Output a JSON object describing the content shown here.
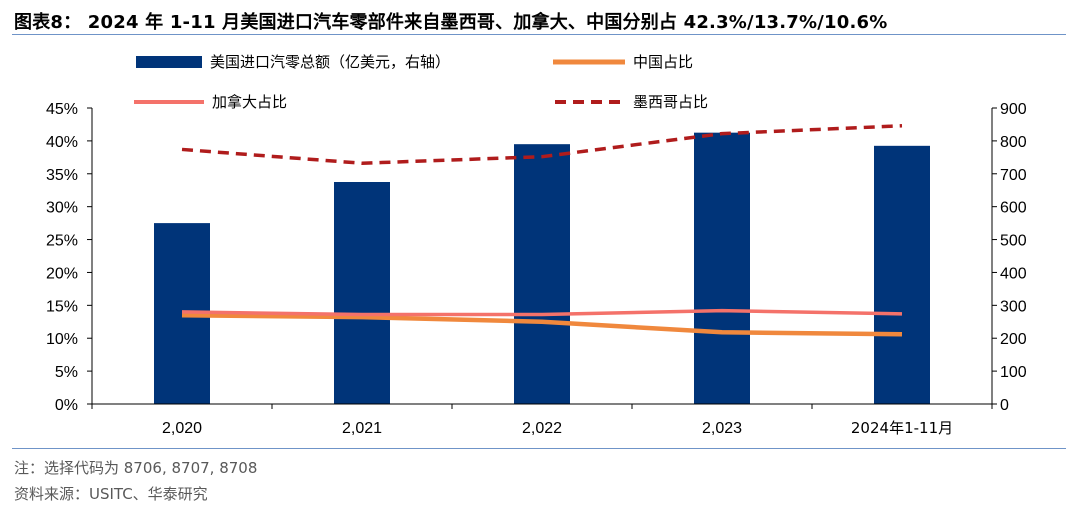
{
  "title": "图表8： 2024 年 1-11 月美国进口汽车零部件来自墨西哥、加拿大、中国分别占 42.3%/13.7%/10.6%",
  "footnotes": {
    "note": "注：选择代码为 8706, 8707, 8708",
    "source": "资料来源：USITC、华泰研究"
  },
  "colors": {
    "bar": "#003479",
    "china": "#f0883d",
    "canada": "#f4726a",
    "mexico": "#b01c1c",
    "axis": "#000000",
    "rule": "#6f94c8"
  },
  "chart_data": {
    "type": "bar",
    "categories": [
      "2,020",
      "2,021",
      "2,022",
      "2,023",
      "2024年1-11月"
    ],
    "y_left": {
      "ticks": [
        "0%",
        "5%",
        "10%",
        "15%",
        "20%",
        "25%",
        "30%",
        "35%",
        "40%",
        "45%"
      ],
      "ylim": [
        0,
        45
      ]
    },
    "y_right": {
      "ticks": [
        "0",
        "100",
        "200",
        "300",
        "400",
        "500",
        "600",
        "700",
        "800",
        "900"
      ],
      "ylim": [
        0,
        900
      ]
    },
    "grid": false,
    "legend_position": "top",
    "series": [
      {
        "name": "美国进口汽零总额（亿美元，右轴）",
        "type": "bar",
        "axis": "right",
        "values": [
          550,
          675,
          790,
          825,
          785
        ]
      },
      {
        "name": "中国占比",
        "type": "line",
        "axis": "left",
        "style": "solid",
        "values": [
          13.5,
          13.2,
          12.5,
          10.9,
          10.6
        ]
      },
      {
        "name": "加拿大占比",
        "type": "line",
        "axis": "left",
        "style": "solid",
        "values": [
          14.0,
          13.6,
          13.6,
          14.2,
          13.7
        ]
      },
      {
        "name": "墨西哥占比",
        "type": "line",
        "axis": "left",
        "style": "dashed",
        "values": [
          38.7,
          36.6,
          37.6,
          41.1,
          42.3
        ]
      }
    ]
  }
}
